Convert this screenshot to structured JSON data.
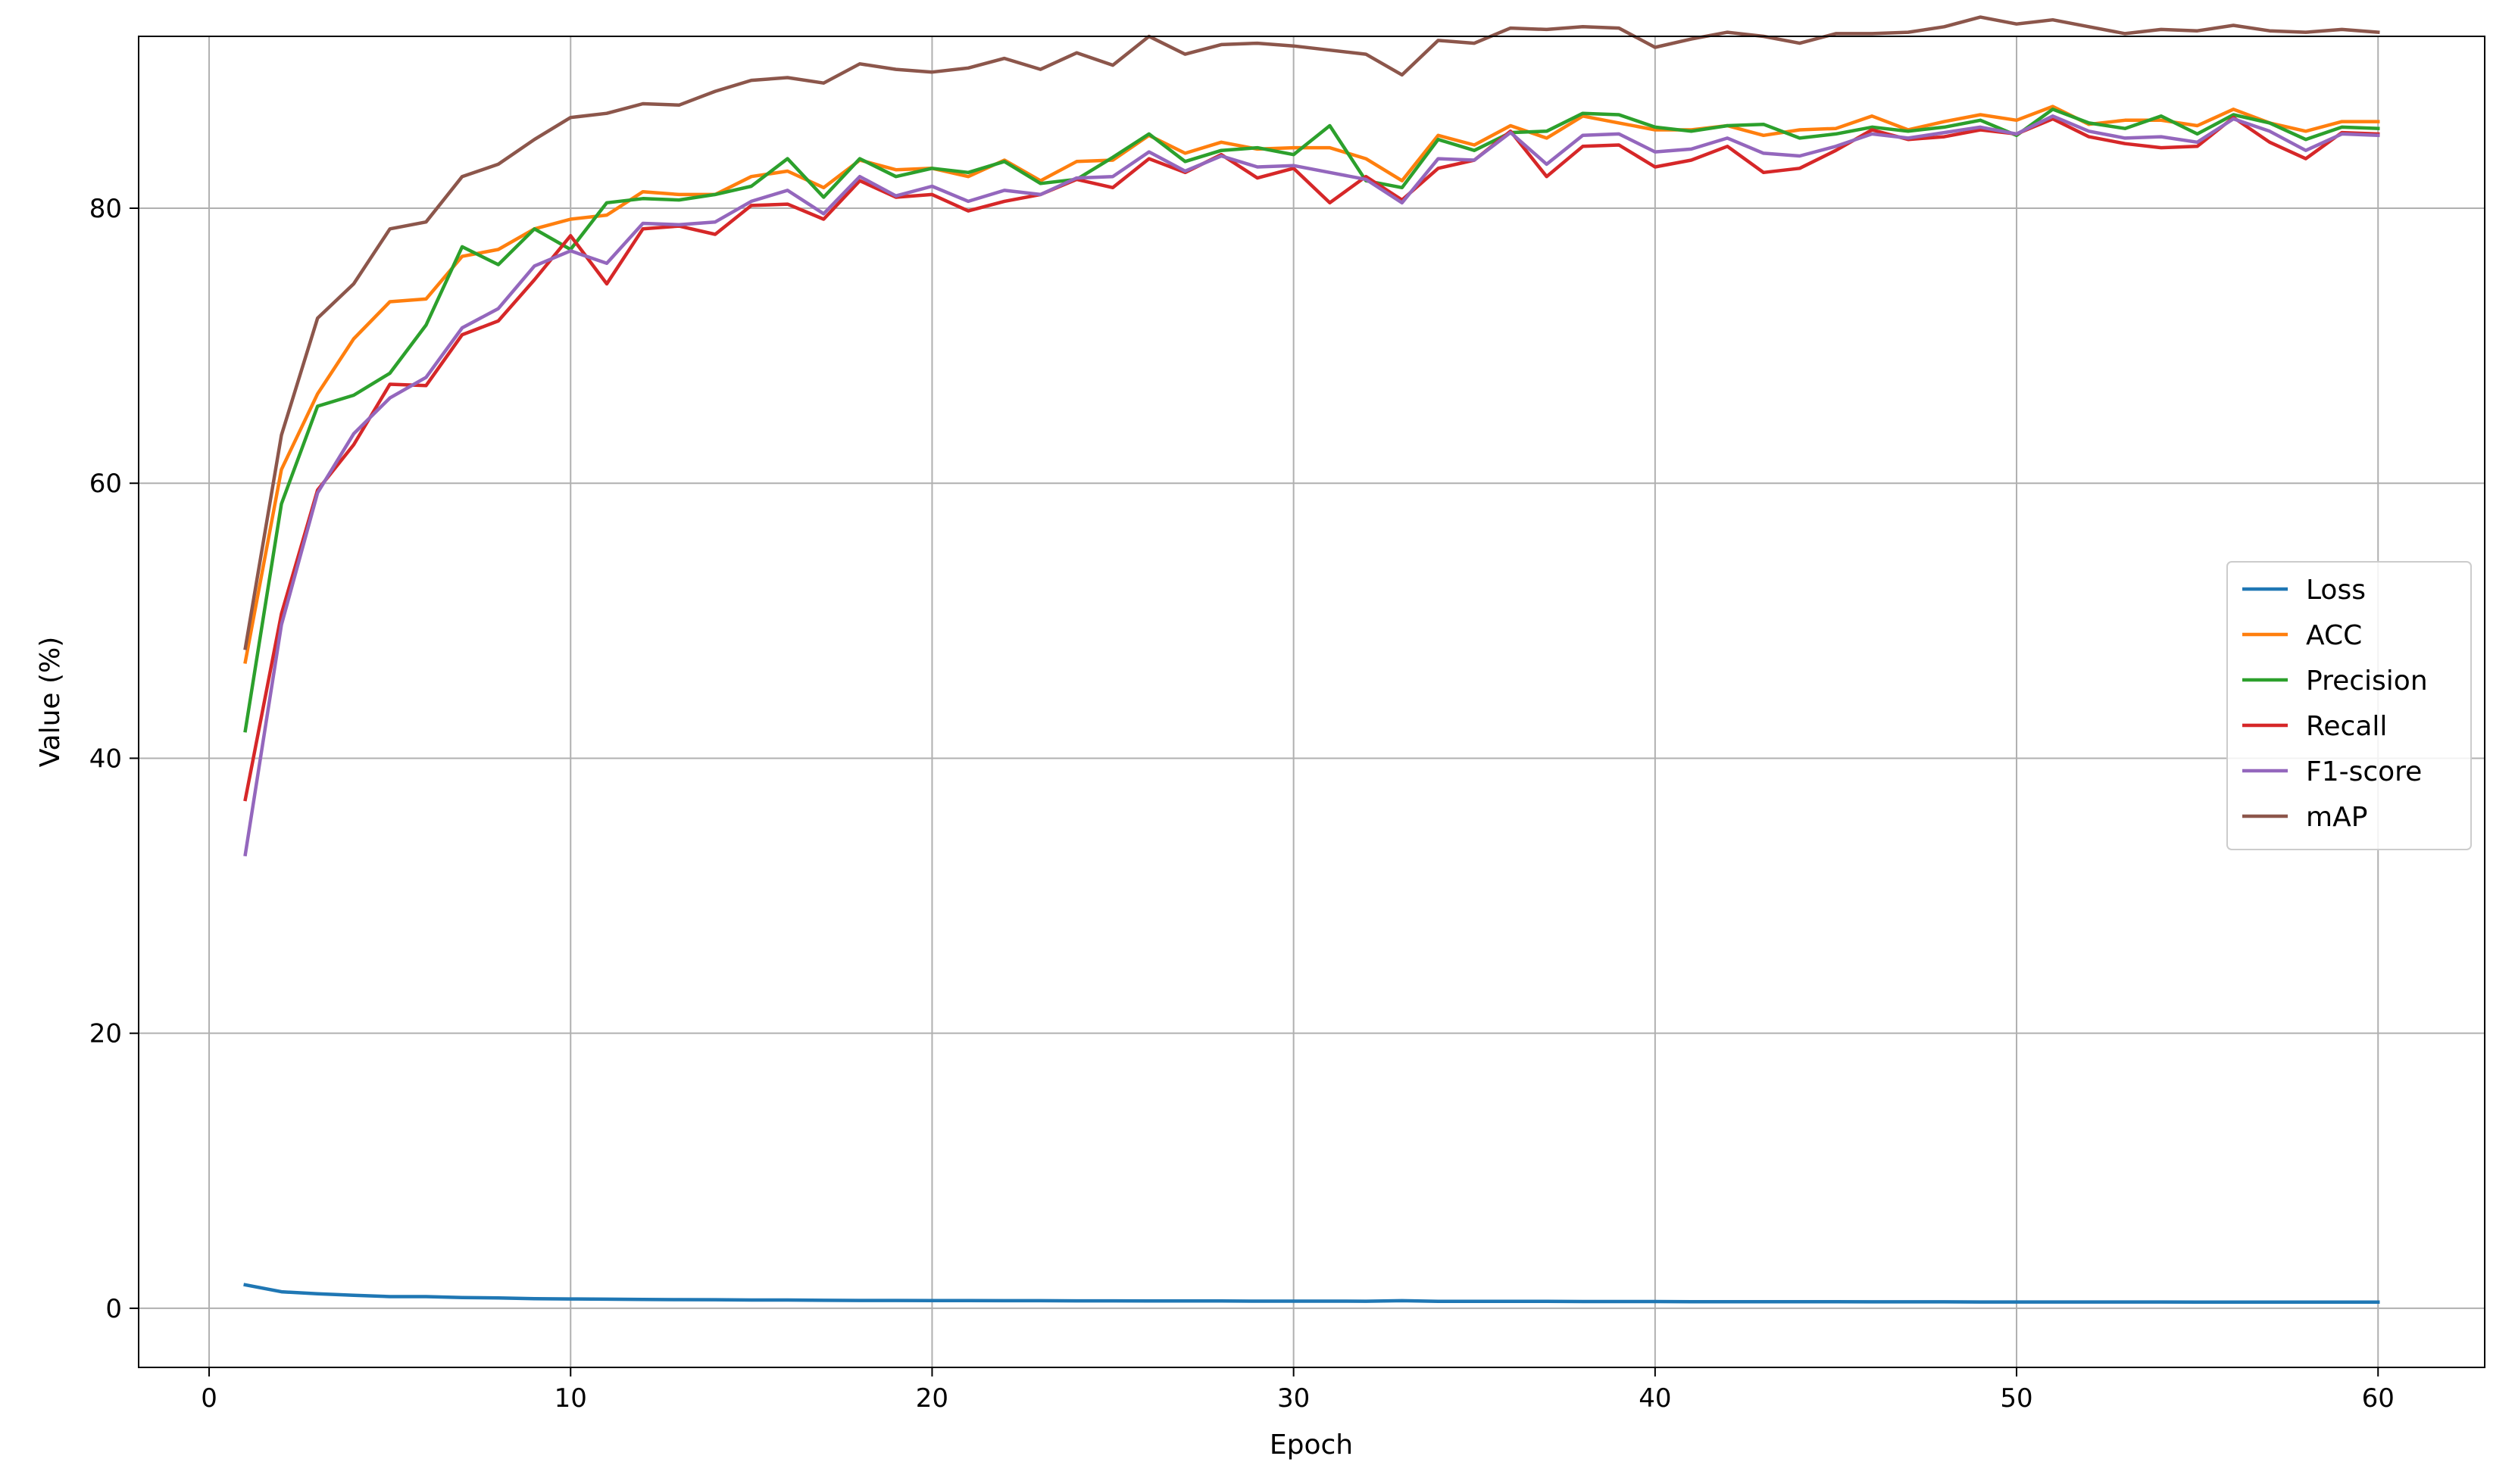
{
  "chart_data": {
    "type": "line",
    "title": "",
    "xlabel": "Epoch",
    "ylabel": "Value (%)",
    "xlim": [
      -1.95,
      62.95
    ],
    "ylim": [
      -4.3,
      92.5
    ],
    "xticks": [
      0,
      10,
      20,
      30,
      40,
      50,
      60
    ],
    "yticks": [
      0,
      20,
      40,
      60,
      80
    ],
    "grid": true,
    "legend_position": "center-right",
    "x": [
      1,
      2,
      3,
      4,
      5,
      6,
      7,
      8,
      9,
      10,
      11,
      12,
      13,
      14,
      15,
      16,
      17,
      18,
      19,
      20,
      21,
      22,
      23,
      24,
      25,
      26,
      27,
      28,
      29,
      30,
      31,
      32,
      33,
      34,
      35,
      36,
      37,
      38,
      39,
      40,
      41,
      42,
      43,
      44,
      45,
      46,
      47,
      48,
      49,
      50,
      51,
      52,
      53,
      54,
      55,
      56,
      57,
      58,
      59,
      60
    ],
    "series": [
      {
        "name": "Loss",
        "color": "#1f77b4",
        "values": [
          1.7,
          1.2,
          1.05,
          0.95,
          0.85,
          0.85,
          0.78,
          0.75,
          0.7,
          0.68,
          0.66,
          0.64,
          0.63,
          0.62,
          0.6,
          0.6,
          0.58,
          0.57,
          0.57,
          0.56,
          0.56,
          0.55,
          0.55,
          0.54,
          0.54,
          0.53,
          0.53,
          0.53,
          0.52,
          0.52,
          0.52,
          0.51,
          0.55,
          0.5,
          0.5,
          0.5,
          0.5,
          0.49,
          0.49,
          0.49,
          0.48,
          0.48,
          0.48,
          0.48,
          0.48,
          0.47,
          0.47,
          0.47,
          0.46,
          0.46,
          0.46,
          0.46,
          0.46,
          0.46,
          0.45,
          0.45,
          0.45,
          0.45,
          0.45,
          0.45
        ]
      },
      {
        "name": "ACC",
        "color": "#ff7f0e",
        "values": [
          47.0,
          61.0,
          66.5,
          70.5,
          73.2,
          73.4,
          76.5,
          77.0,
          78.5,
          79.2,
          79.5,
          81.2,
          81.0,
          81.0,
          82.3,
          82.7,
          81.5,
          83.5,
          82.8,
          82.9,
          82.3,
          83.5,
          82.0,
          83.4,
          83.5,
          85.3,
          84.0,
          84.8,
          84.3,
          84.4,
          84.4,
          83.6,
          82.0,
          85.3,
          84.6,
          86.0,
          85.1,
          86.7,
          86.2,
          85.7,
          85.7,
          86.0,
          85.3,
          85.7,
          85.8,
          86.7,
          85.7,
          86.3,
          86.8,
          86.4,
          87.4,
          86.1,
          86.4,
          86.4,
          86.0,
          87.2,
          86.2,
          85.6,
          86.3,
          86.3
        ]
      },
      {
        "name": "Precision",
        "color": "#2ca02c",
        "values": [
          42.0,
          58.5,
          65.6,
          66.4,
          68.0,
          71.5,
          77.2,
          75.9,
          78.5,
          77.0,
          80.4,
          80.7,
          80.6,
          81.0,
          81.6,
          83.6,
          80.8,
          83.6,
          82.3,
          82.9,
          82.6,
          83.4,
          81.8,
          82.1,
          83.7,
          85.4,
          83.4,
          84.2,
          84.4,
          83.9,
          86.0,
          82.0,
          81.5,
          85.0,
          84.2,
          85.5,
          85.6,
          86.9,
          86.8,
          85.9,
          85.6,
          86.0,
          86.1,
          85.1,
          85.4,
          85.9,
          85.6,
          85.9,
          86.4,
          85.3,
          87.2,
          86.2,
          85.8,
          86.7,
          85.4,
          86.8,
          86.2,
          85.0,
          85.9,
          85.8
        ]
      },
      {
        "name": "Recall",
        "color": "#d62728",
        "values": [
          37.0,
          50.5,
          59.5,
          62.8,
          67.2,
          67.1,
          70.8,
          71.8,
          74.8,
          78.0,
          74.5,
          78.5,
          78.7,
          78.1,
          80.2,
          80.3,
          79.2,
          82.0,
          80.8,
          81.0,
          79.8,
          80.5,
          81.0,
          82.1,
          81.5,
          83.6,
          82.6,
          83.9,
          82.2,
          82.9,
          80.4,
          82.3,
          80.6,
          82.9,
          83.5,
          85.6,
          82.3,
          84.5,
          84.6,
          83.0,
          83.5,
          84.5,
          82.6,
          82.9,
          84.2,
          85.7,
          85.0,
          85.2,
          85.7,
          85.4,
          86.5,
          85.2,
          84.7,
          84.4,
          84.5,
          86.6,
          84.8,
          83.6,
          85.5,
          85.4
        ]
      },
      {
        "name": "F1-score",
        "color": "#9467bd",
        "values": [
          33.0,
          49.7,
          59.3,
          63.6,
          66.2,
          67.7,
          71.3,
          72.7,
          75.8,
          76.9,
          76.0,
          78.9,
          78.8,
          79.0,
          80.5,
          81.3,
          79.6,
          82.3,
          80.9,
          81.6,
          80.5,
          81.3,
          81.0,
          82.2,
          82.3,
          84.1,
          82.7,
          83.8,
          83.0,
          83.1,
          82.6,
          82.1,
          80.4,
          83.6,
          83.5,
          85.5,
          83.2,
          85.3,
          85.4,
          84.1,
          84.3,
          85.1,
          84.0,
          83.8,
          84.5,
          85.4,
          85.1,
          85.5,
          85.9,
          85.4,
          86.7,
          85.6,
          85.1,
          85.2,
          84.8,
          86.5,
          85.6,
          84.2,
          85.4,
          85.3
        ]
      },
      {
        "name": "mAP",
        "color": "#8c564b",
        "values": [
          48.0,
          63.5,
          72.0,
          74.5,
          78.5,
          79.0,
          82.3,
          83.2,
          85.0,
          86.6,
          86.9,
          87.6,
          87.5,
          88.5,
          89.3,
          89.5,
          89.1,
          90.5,
          90.1,
          89.9,
          90.2,
          90.9,
          90.1,
          91.3,
          90.4,
          92.5,
          91.2,
          91.9,
          92.0,
          91.8,
          91.5,
          91.2,
          89.7,
          92.2,
          92.0,
          93.1,
          93.0,
          93.2,
          93.1,
          91.7,
          92.3,
          92.8,
          92.5,
          92.0,
          92.7,
          92.7,
          92.8,
          93.2,
          93.9,
          93.4,
          93.7,
          93.2,
          92.7,
          93.0,
          92.9,
          93.3,
          92.9,
          92.8,
          93.0,
          92.8
        ]
      }
    ]
  }
}
